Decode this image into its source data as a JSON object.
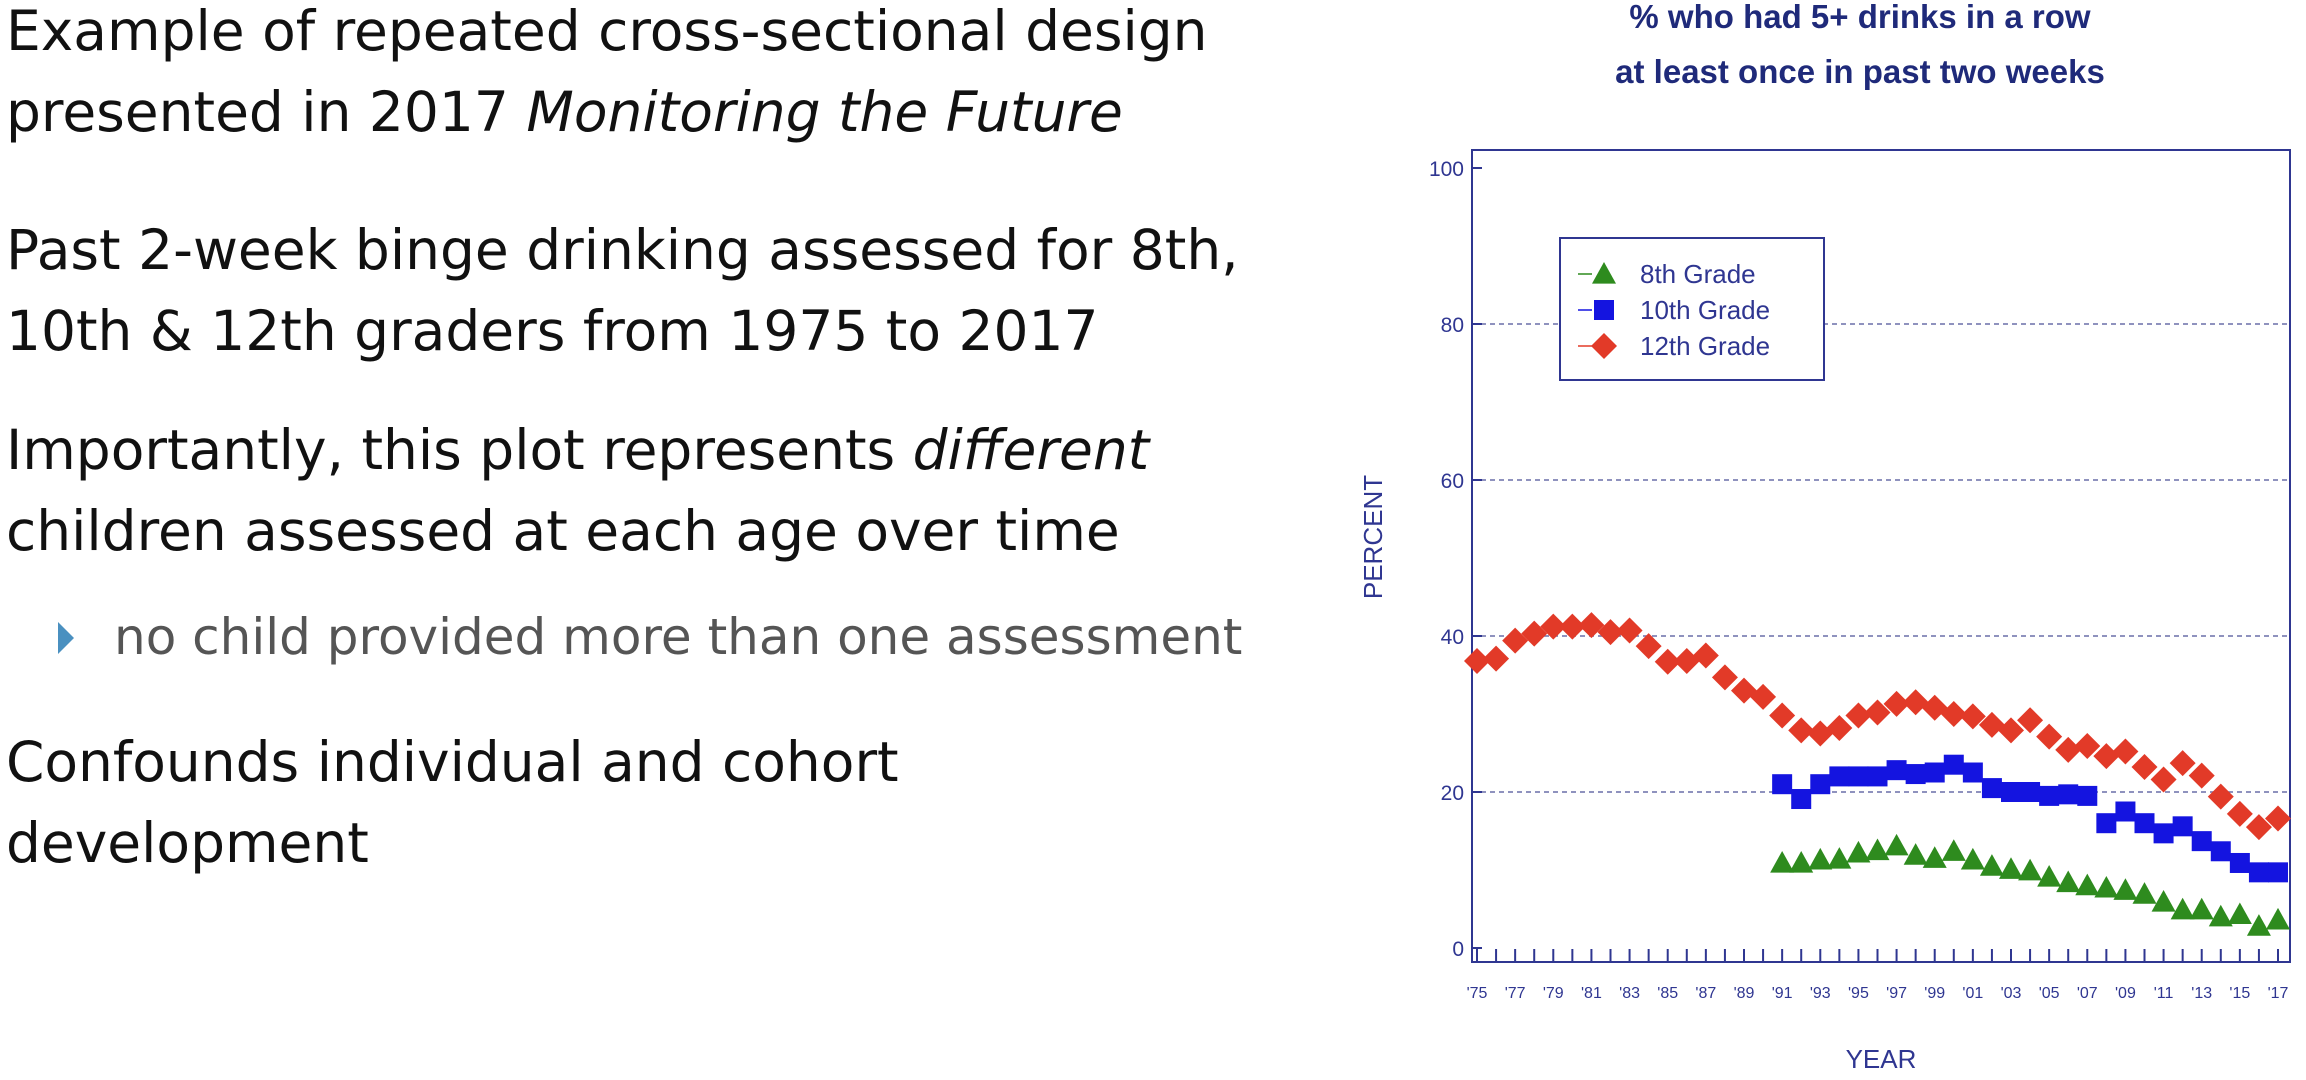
{
  "slide": {
    "p1": {
      "line1": "Example of repeated cross-sectional design",
      "line2_plain": "presented in 2017 ",
      "line2_italic": "Monitoring the Future"
    },
    "p2": {
      "line1": "Past 2-week binge drinking assessed for 8th,",
      "line2": "10th & 12th graders from 1975 to 2017"
    },
    "p3": {
      "line1_plain": "Importantly, this plot represents ",
      "line1_italic": "different",
      "line2": "children assessed at each age over time"
    },
    "sub_bullet": "no child provided more than one assessment",
    "p4": {
      "line1": "Confounds individual and cohort",
      "line2": "development"
    }
  },
  "colors": {
    "axis": "#2f3691",
    "title": "#1f2a7a",
    "grid": "#6a6fa8",
    "bullet_marker": "#4a90c0",
    "series_8th": "#2e8b1e",
    "series_10th": "#1414e0",
    "series_12th": "#e23a28"
  },
  "chart_data": {
    "type": "scatter",
    "title_line1": "% who had 5+ drinks in a row",
    "title_line2": "at least once in past two weeks",
    "xlabel": "YEAR",
    "ylabel": "PERCENT",
    "xlim": [
      1975,
      2017
    ],
    "ylim": [
      0,
      100
    ],
    "yticks": [
      0,
      20,
      40,
      60,
      80,
      100
    ],
    "xticks": [
      "'75",
      "'77",
      "'79",
      "'81",
      "'83",
      "'85",
      "'87",
      "'89",
      "'91",
      "'93",
      "'95",
      "'97",
      "'99",
      "'01",
      "'03",
      "'05",
      "'07",
      "'09",
      "'11",
      "'13",
      "'15",
      "'17"
    ],
    "grid": "horizontal dashed",
    "legend_position": "top-left",
    "series": [
      {
        "name": "8th Grade",
        "marker": "triangle",
        "color": "#2e8b1e",
        "x": [
          1991,
          1992,
          1993,
          1994,
          1995,
          1996,
          1997,
          1998,
          1999,
          2000,
          2001,
          2002,
          2003,
          2004,
          2005,
          2006,
          2007,
          2008,
          2009,
          2010,
          2011,
          2012,
          2013,
          2014,
          2015,
          2016,
          2017
        ],
        "values": [
          10.9,
          10.9,
          11.3,
          11.4,
          12.2,
          12.5,
          13.1,
          11.9,
          11.5,
          12.4,
          11.3,
          10.5,
          10.1,
          9.9,
          9.1,
          8.4,
          8.0,
          7.7,
          7.4,
          6.9,
          5.9,
          4.9,
          4.9,
          4.0,
          4.3,
          2.8,
          3.6
        ]
      },
      {
        "name": "10th Grade",
        "marker": "square",
        "color": "#1414e0",
        "x": [
          1991,
          1992,
          1993,
          1994,
          1995,
          1996,
          1997,
          1998,
          1999,
          2000,
          2001,
          2002,
          2003,
          2004,
          2005,
          2006,
          2007,
          2008,
          2009,
          2010,
          2011,
          2012,
          2013,
          2014,
          2015,
          2016,
          2017
        ],
        "values": [
          21.0,
          19.1,
          21.0,
          22.0,
          22.0,
          22.0,
          22.8,
          22.3,
          22.5,
          23.5,
          22.5,
          20.5,
          20.0,
          20.0,
          19.5,
          19.7,
          19.5,
          16.0,
          17.5,
          16.0,
          14.7,
          15.6,
          13.7,
          12.4,
          10.9,
          9.7,
          9.7
        ]
      },
      {
        "name": "12th Grade",
        "marker": "diamond",
        "color": "#e23a28",
        "x": [
          1975,
          1976,
          1977,
          1978,
          1979,
          1980,
          1981,
          1982,
          1983,
          1984,
          1985,
          1986,
          1987,
          1988,
          1989,
          1990,
          1991,
          1992,
          1993,
          1994,
          1995,
          1996,
          1997,
          1998,
          1999,
          2000,
          2001,
          2002,
          2003,
          2004,
          2005,
          2006,
          2007,
          2008,
          2009,
          2010,
          2011,
          2012,
          2013,
          2014,
          2015,
          2016,
          2017
        ],
        "values": [
          36.8,
          37.1,
          39.4,
          40.3,
          41.2,
          41.2,
          41.4,
          40.5,
          40.7,
          38.7,
          36.7,
          36.8,
          37.5,
          34.7,
          33.0,
          32.2,
          29.8,
          27.9,
          27.5,
          28.2,
          29.8,
          30.2,
          31.3,
          31.5,
          30.8,
          30.0,
          29.7,
          28.6,
          27.9,
          29.2,
          27.1,
          25.4,
          25.9,
          24.6,
          25.2,
          23.2,
          21.6,
          23.7,
          22.1,
          19.4,
          17.2,
          15.5,
          16.6
        ]
      }
    ]
  }
}
